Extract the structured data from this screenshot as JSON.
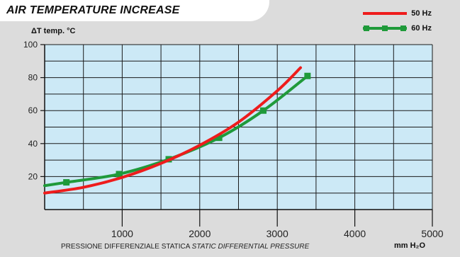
{
  "chart_data": {
    "type": "line",
    "title": "AIR TEMPERATURE INCREASE",
    "ylabel": "ΔT  temp. °C",
    "xlabel_it": "PRESSIONE DIFFERENZIALE STATICA",
    "xlabel_en": "STATIC DIFFERENTIAL PRESSURE",
    "xunit": "mm H₂O",
    "xlim": [
      0,
      5000
    ],
    "ylim": [
      0,
      100
    ],
    "x_ticks": [
      1000,
      2000,
      3000,
      4000,
      5000
    ],
    "y_ticks": [
      20,
      40,
      60,
      80,
      100
    ],
    "grid": true,
    "legend_position": "top-right",
    "series": [
      {
        "name": "50 Hz",
        "color": "#ee1c1c",
        "marker": "none",
        "x": [
          0,
          500,
          1000,
          1500,
          2000,
          2500,
          3000,
          3300
        ],
        "y": [
          10,
          13.5,
          19.5,
          28,
          39,
          53,
          72,
          86
        ]
      },
      {
        "name": "60 Hz",
        "color": "#1f9a3a",
        "marker": "square",
        "x": [
          0,
          280,
          960,
          1600,
          2250,
          2820,
          3390
        ],
        "y": [
          14.5,
          16.5,
          21.5,
          30.5,
          43.5,
          60,
          81
        ]
      }
    ]
  },
  "colors": {
    "plot_background": "#cce9f6",
    "grid": "#1a1a1a",
    "page_background": "#dcdcdc"
  }
}
